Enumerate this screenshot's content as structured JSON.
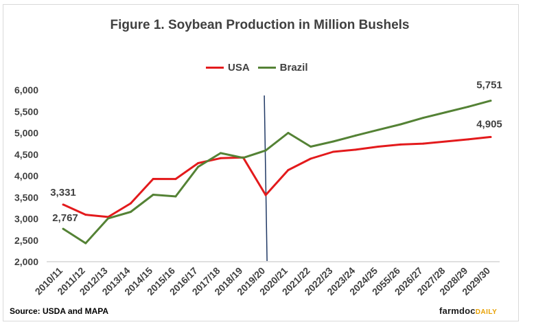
{
  "chart_data": {
    "type": "line",
    "title": "Figure 1. Soybean Production in Million Bushels",
    "categories": [
      "2010/11",
      "2011/12",
      "2012/13",
      "2013/14",
      "2014/15",
      "2015/16",
      "2016/17",
      "2017/18",
      "2018/19",
      "2019/20",
      "2020/21",
      "2021/22",
      "2022/23",
      "2023/24",
      "2024/25",
      "2055/26",
      "2026/27",
      "2027/28",
      "2028/29",
      "2029/30"
    ],
    "series": [
      {
        "name": "USA",
        "color": "#e31a1c",
        "values": [
          3331,
          3094,
          3042,
          3358,
          3928,
          3926,
          4296,
          4412,
          4428,
          3552,
          4135,
          4400,
          4560,
          4610,
          4680,
          4730,
          4750,
          4800,
          4850,
          4905
        ]
      },
      {
        "name": "Brazil",
        "color": "#548235",
        "values": [
          2767,
          2430,
          3010,
          3160,
          3560,
          3520,
          4210,
          4530,
          4420,
          4590,
          5000,
          4680,
          4800,
          4940,
          5070,
          5200,
          5350,
          5480,
          5610,
          5751
        ]
      }
    ],
    "ylim": [
      2000,
      6000
    ],
    "yticks": [
      "2,000",
      "2,500",
      "3,000",
      "3,500",
      "4,000",
      "4,500",
      "5,000",
      "5,500",
      "6,000"
    ],
    "ytick_values": [
      2000,
      2500,
      3000,
      3500,
      4000,
      4500,
      5000,
      5500,
      6000
    ],
    "annotations": [
      {
        "series": "USA",
        "index": 0,
        "text": "3,331"
      },
      {
        "series": "Brazil",
        "index": 0,
        "text": "2,767"
      },
      {
        "series": "Brazil",
        "index": 19,
        "text": "5,751"
      },
      {
        "series": "USA",
        "index": 19,
        "text": "4,905"
      }
    ],
    "vertical_marker_category": "2019/20",
    "vertical_marker_color": "#1f3864",
    "legend_position": "top-center",
    "grid": false
  },
  "legend": {
    "usa": "USA",
    "brazil": "Brazil"
  },
  "source": "Source: USDA  and MAPA",
  "brand": {
    "main": "farmdoc",
    "sub": "DAILY"
  }
}
